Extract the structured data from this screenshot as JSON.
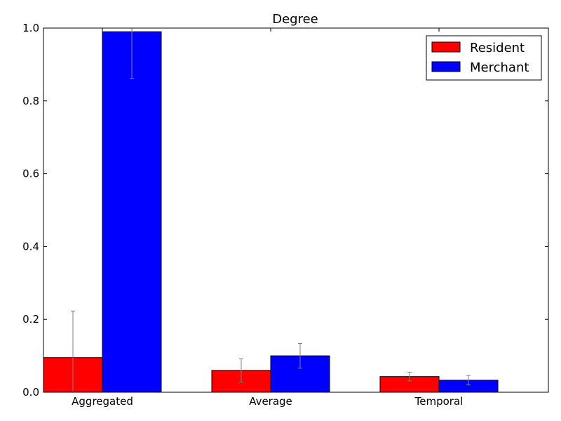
{
  "chart_data": {
    "type": "bar",
    "title": "Degree",
    "xlabel": "",
    "ylabel": "",
    "categories": [
      "Aggregated",
      "Average",
      "Temporal"
    ],
    "ylim": [
      0.0,
      1.0
    ],
    "yticks": [
      "0.0",
      "0.2",
      "0.4",
      "0.6",
      "0.8",
      "1.0"
    ],
    "grid": false,
    "legend_position": "top-right",
    "series": [
      {
        "name": "Resident",
        "color": "#ff0000",
        "values": [
          0.095,
          0.06,
          0.043
        ],
        "errors": [
          0.128,
          0.032,
          0.012
        ]
      },
      {
        "name": "Merchant",
        "color": "#0000ff",
        "values": [
          0.99,
          0.1,
          0.033
        ],
        "errors": [
          0.128,
          0.034,
          0.013
        ]
      }
    ],
    "error_bar_color": "#808080"
  }
}
